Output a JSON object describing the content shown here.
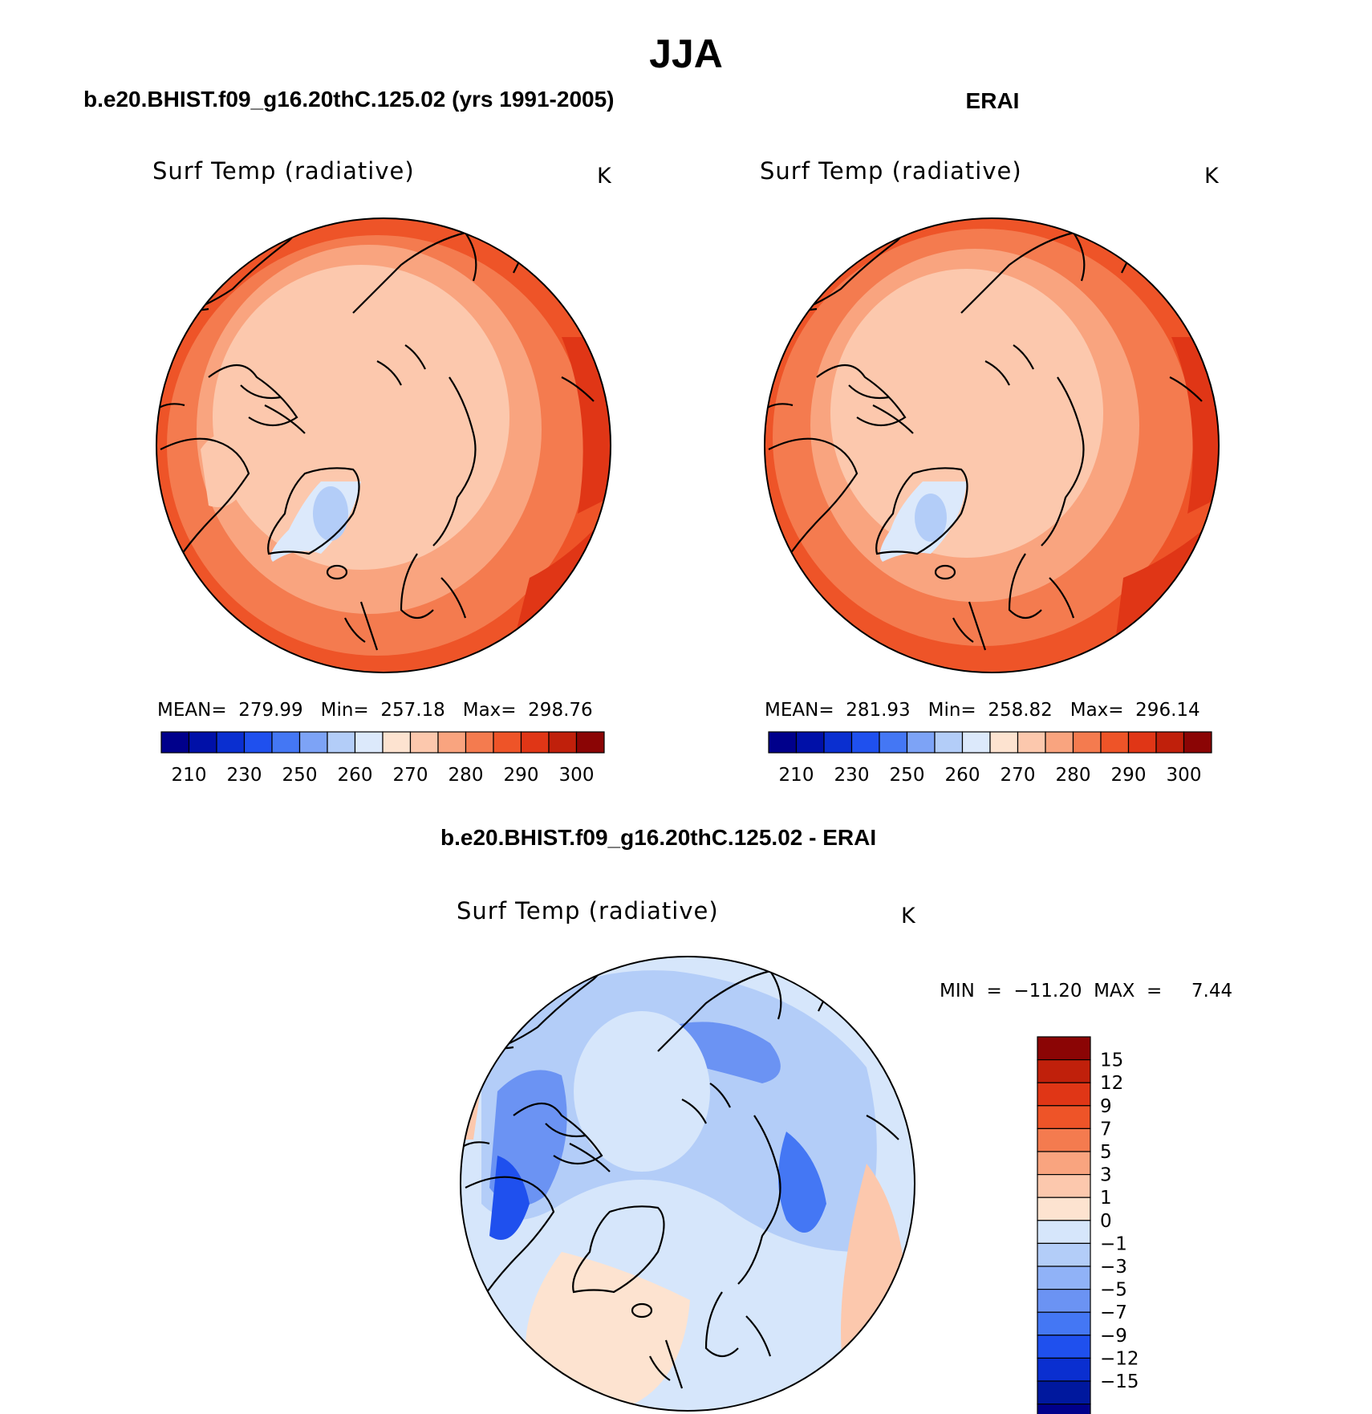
{
  "page": {
    "title": "JJA"
  },
  "panels": [
    {
      "header": "b.e20.BHIST.f09_g16.20thC.125.02 (yrs 1991-2005)",
      "variable": "Surf Temp (radiative)",
      "units": "K",
      "stats": "MEAN=  279.99   Min=  257.18   Max=  298.76"
    },
    {
      "header": "ERAI",
      "variable": "Surf Temp (radiative)",
      "units": "K",
      "stats": "MEAN=  281.93   Min=  258.82   Max=  296.14"
    }
  ],
  "diff_panel": {
    "header": "b.e20.BHIST.f09_g16.20thC.125.02 - ERAI",
    "variable": "Surf Temp (radiative)",
    "units": "K",
    "stats": "MIN  =  −11.20  MAX  =     7.44"
  },
  "abs_colorbar": {
    "colors": [
      "#00008b",
      "#0010a8",
      "#0a2fd0",
      "#1f50ee",
      "#4477f4",
      "#7da3f6",
      "#b3cdf8",
      "#dce9fb",
      "#fde3d0",
      "#fcc8ad",
      "#f9a47f",
      "#f47b4f",
      "#ee5428",
      "#e03616",
      "#c0200b",
      "#8b0505"
    ],
    "tick_labels": [
      "210",
      "230",
      "250",
      "260",
      "270",
      "280",
      "290",
      "300"
    ]
  },
  "diff_colorbar": {
    "colors": [
      "#8b0505",
      "#c0200b",
      "#e03616",
      "#ee5428",
      "#f47b4f",
      "#f9a47f",
      "#fcc8ad",
      "#fde3d0",
      "#d6e6fb",
      "#b3cdf8",
      "#90b2f7",
      "#6b93f3",
      "#4477f4",
      "#1f50ee",
      "#0a2fd0",
      "#00189e",
      "#00008b"
    ],
    "tick_labels": [
      "15",
      "12",
      "9",
      "7",
      "5",
      "3",
      "1",
      "0",
      "−1",
      "−3",
      "−5",
      "−7",
      "−9",
      "−12",
      "−15"
    ]
  }
}
